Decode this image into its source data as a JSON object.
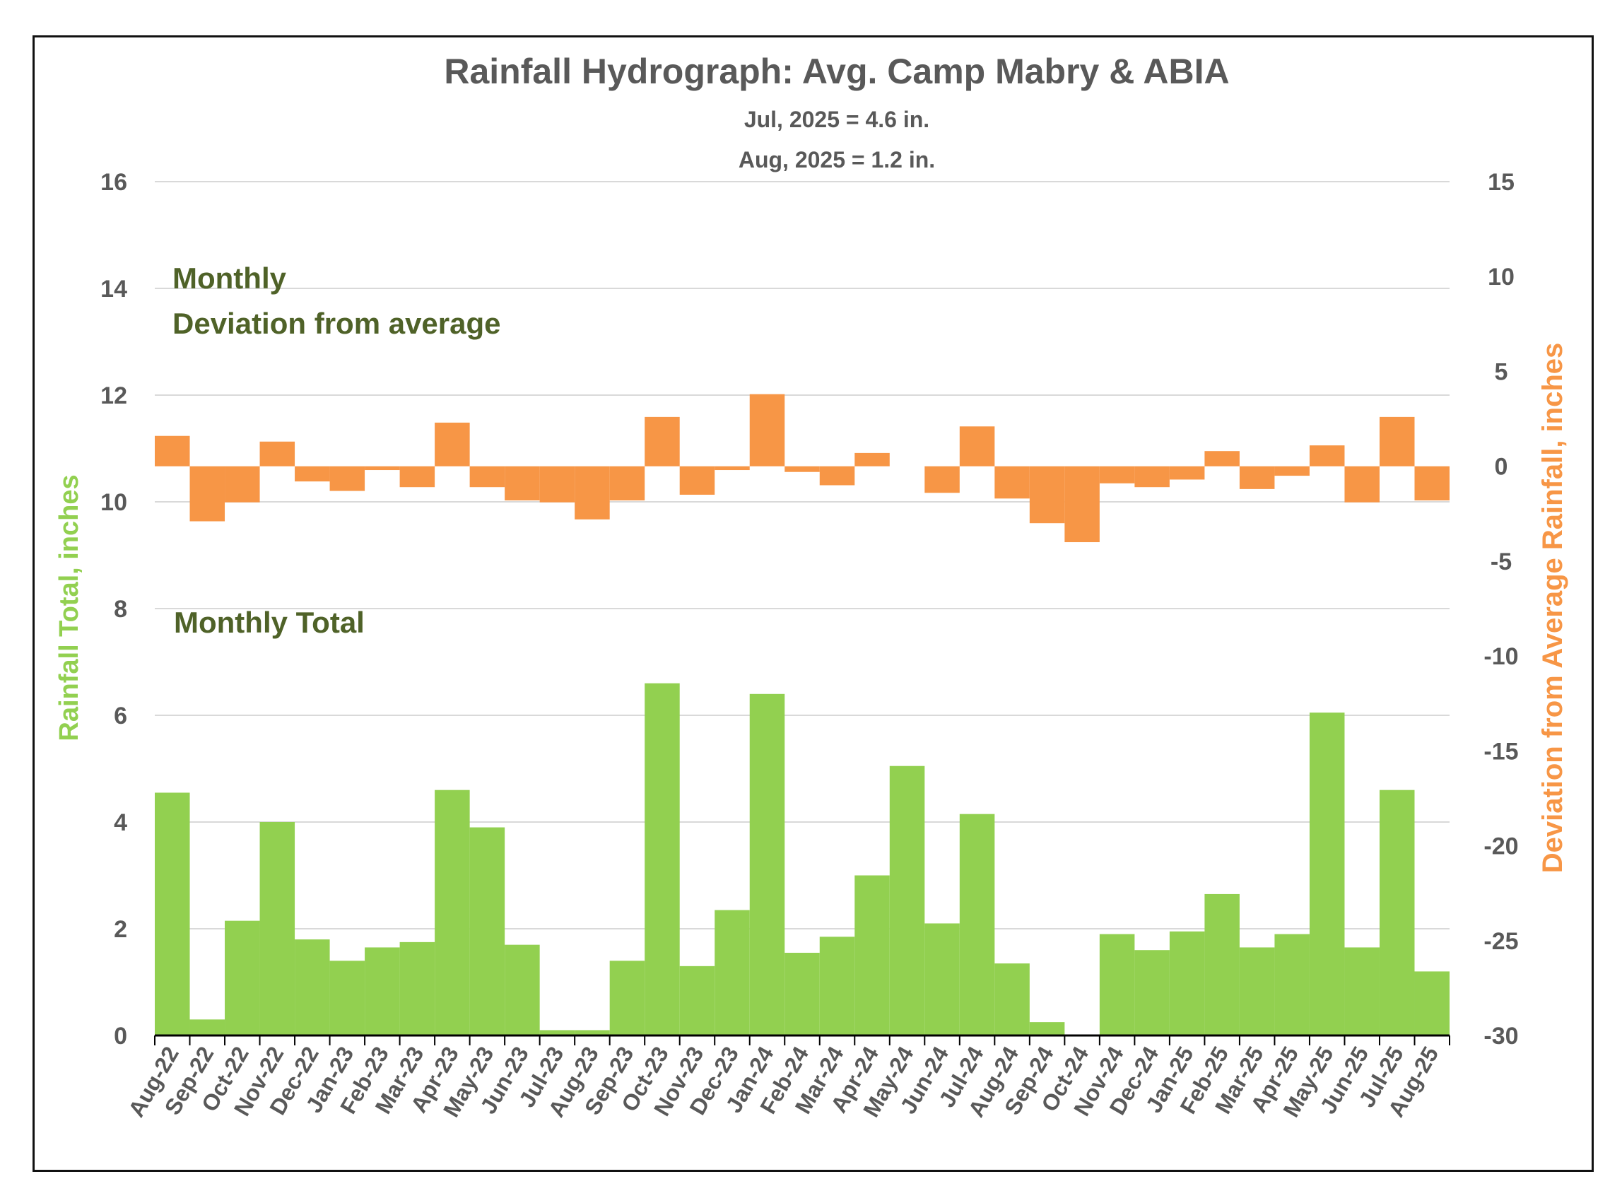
{
  "chart_data": {
    "type": "bar",
    "title": "Rainfall Hydrograph: Avg. Camp Mabry & ABIA",
    "subtitle_lines": [
      "Jul, 2025 = 4.6 in.",
      "Aug, 2025 = 1.2 in."
    ],
    "ylabel_left": "Rainfall Total, inches",
    "ylabel_right": "Deviation from Average Rainfall, inches",
    "ylim_left": [
      0,
      16
    ],
    "ylim_right": [
      -30,
      15
    ],
    "yticks_left": [
      "0",
      "2",
      "4",
      "6",
      "8",
      "10",
      "12",
      "14",
      "16"
    ],
    "yticks_right": [
      "-30",
      "-25",
      "-20",
      "-15",
      "-10",
      "-5",
      "0",
      "5",
      "10",
      "15"
    ],
    "annotations": {
      "deviation_line1": "Monthly",
      "deviation_line2": "Deviation from average",
      "total": "Monthly Total"
    },
    "grid": true,
    "colors": {
      "monthly_total": "#92d050",
      "deviation": "#f79646",
      "annotation_text": "#4f6228",
      "grid": "#d9d9d9",
      "axis_text": "#595959"
    },
    "categories": [
      "Aug-22",
      "Sep-22",
      "Oct-22",
      "Nov-22",
      "Dec-22",
      "Jan-23",
      "Feb-23",
      "Mar-23",
      "Apr-23",
      "May-23",
      "Jun-23",
      "Jul-23",
      "Aug-23",
      "Sep-23",
      "Oct-23",
      "Nov-23",
      "Dec-23",
      "Jan-24",
      "Feb-24",
      "Mar-24",
      "Apr-24",
      "May-24",
      "Jun-24",
      "Jul-24",
      "Aug-24",
      "Sep-24",
      "Oct-24",
      "Nov-24",
      "Dec-24",
      "Jan-25",
      "Feb-25",
      "Mar-25",
      "Apr-25",
      "May-25",
      "Jun-25",
      "Jul-25",
      "Aug-25"
    ],
    "series": [
      {
        "axis": "left",
        "values": [
          4.55,
          0.3,
          2.15,
          4.0,
          1.8,
          1.4,
          1.65,
          1.75,
          4.6,
          3.9,
          1.7,
          0.1,
          0.1,
          1.4,
          6.6,
          1.3,
          2.35,
          6.4,
          1.55,
          1.85,
          3.0,
          5.05,
          2.1,
          4.15,
          1.35,
          0.25,
          0.0,
          1.9,
          1.6,
          1.95,
          2.65,
          1.65,
          1.9,
          6.05,
          1.65,
          4.6,
          1.2
        ]
      },
      {
        "axis": "right",
        "values": [
          1.6,
          -2.9,
          -1.9,
          1.3,
          -0.8,
          -1.3,
          -0.2,
          -1.1,
          2.3,
          -1.1,
          -1.8,
          -1.9,
          -2.8,
          -1.8,
          2.6,
          -1.5,
          -0.2,
          3.8,
          -0.3,
          -1.0,
          0.7,
          0.0,
          -1.4,
          2.1,
          -1.7,
          -3.0,
          -4.0,
          -0.9,
          -1.1,
          -0.7,
          0.8,
          -1.2,
          -0.5,
          1.1,
          -1.9,
          2.6,
          -1.8
        ]
      }
    ]
  }
}
